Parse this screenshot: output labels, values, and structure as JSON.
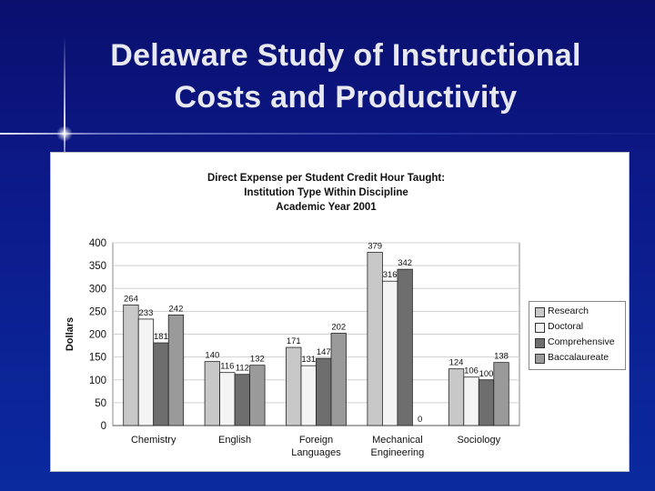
{
  "slide": {
    "title_line1": "Delaware Study of Instructional",
    "title_line2": "Costs and Productivity"
  },
  "chart_data": {
    "type": "bar",
    "title": [
      "Direct Expense per Student Credit Hour Taught:",
      "Institution Type Within Discipline",
      "Academic Year 2001"
    ],
    "xlabel": "",
    "ylabel": "Dollars",
    "ylim": [
      0,
      400
    ],
    "yticks": [
      0,
      50,
      100,
      150,
      200,
      250,
      300,
      350,
      400
    ],
    "grid": true,
    "legend_position": "right",
    "categories": [
      [
        "Chemistry"
      ],
      [
        "English"
      ],
      [
        "Foreign",
        "Languages"
      ],
      [
        "Mechanical",
        "Engineering"
      ],
      [
        "Sociology"
      ]
    ],
    "series": [
      {
        "name": "Research",
        "color": "#c8c8c8",
        "values": [
          264,
          140,
          171,
          379,
          124
        ]
      },
      {
        "name": "Doctoral",
        "color": "#f4f4f4",
        "values": [
          233,
          116,
          131,
          316,
          106
        ]
      },
      {
        "name": "Comprehensive",
        "color": "#6e6e6e",
        "values": [
          181,
          112,
          147,
          342,
          100
        ]
      },
      {
        "name": "Baccalaureate",
        "color": "#9a9a9a",
        "values": [
          242,
          132,
          202,
          0,
          138
        ]
      }
    ]
  }
}
